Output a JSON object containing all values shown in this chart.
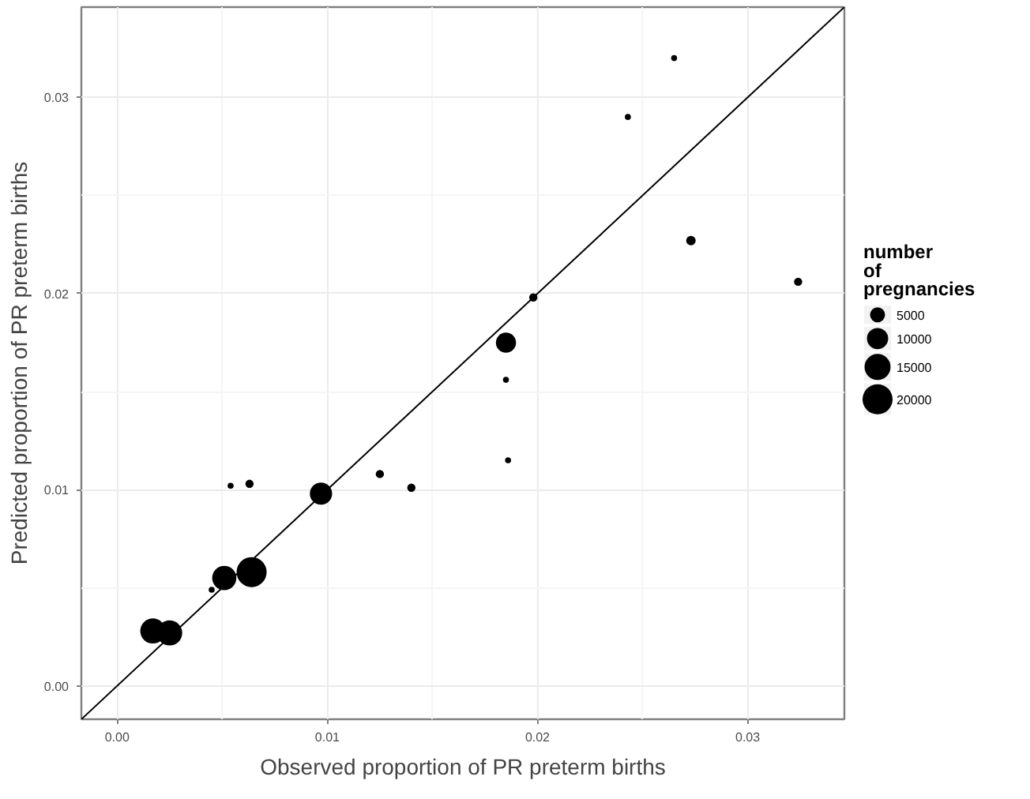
{
  "chart_data": {
    "type": "bubble",
    "xlabel": "Observed proportion of PR preterm births",
    "ylabel": "Predicted proportion of PR preterm births",
    "legend_title": "number of pregnancies",
    "size_legend": [
      5000,
      10000,
      15000,
      20000
    ],
    "xlim": [
      -0.0017,
      0.0346
    ],
    "ylim": [
      -0.0017,
      0.0346
    ],
    "xticks": [
      {
        "value": 0,
        "label": "0.00"
      },
      {
        "value": 0.005,
        "label": null
      },
      {
        "value": 0.01,
        "label": "0.01"
      },
      {
        "value": 0.015,
        "label": null
      },
      {
        "value": 0.02,
        "label": "0.02"
      },
      {
        "value": 0.025,
        "label": null
      },
      {
        "value": 0.03,
        "label": "0.03"
      }
    ],
    "yticks": [
      {
        "value": 0,
        "label": "0.00"
      },
      {
        "value": 0.005,
        "label": null
      },
      {
        "value": 0.01,
        "label": "0.01"
      },
      {
        "value": 0.015,
        "label": null
      },
      {
        "value": 0.02,
        "label": "0.02"
      },
      {
        "value": 0.025,
        "label": null
      },
      {
        "value": 0.03,
        "label": "0.03"
      }
    ],
    "grid": true,
    "series": [
      {
        "color": "#000000",
        "x": [
          0.0265,
          0.0243,
          0.0273,
          0.0198,
          0.0185,
          0.0185,
          0.0324,
          0.0186,
          0.0125,
          0.014,
          0.0054,
          0.0063,
          0.0097,
          0.0064,
          0.0051,
          0.0045,
          0.0017,
          0.0025
        ],
        "values": [
          0.032,
          0.029,
          0.0227,
          0.0198,
          0.0175,
          0.0156,
          0.0206,
          0.0115,
          0.0108,
          0.0101,
          0.0102,
          0.0103,
          0.0098,
          0.0058,
          0.0055,
          0.0049,
          0.0028,
          0.0027
        ],
        "sizes": [
          800,
          800,
          2000,
          1500,
          9000,
          800,
          1500,
          800,
          1500,
          1500,
          800,
          1500,
          11000,
          20000,
          13000,
          800,
          14000,
          14000
        ]
      },
      {
        "type": "line",
        "color": "#000000",
        "x": [
          -0.0017,
          0.0346
        ],
        "values": [
          -0.0017,
          0.0346
        ]
      }
    ]
  }
}
